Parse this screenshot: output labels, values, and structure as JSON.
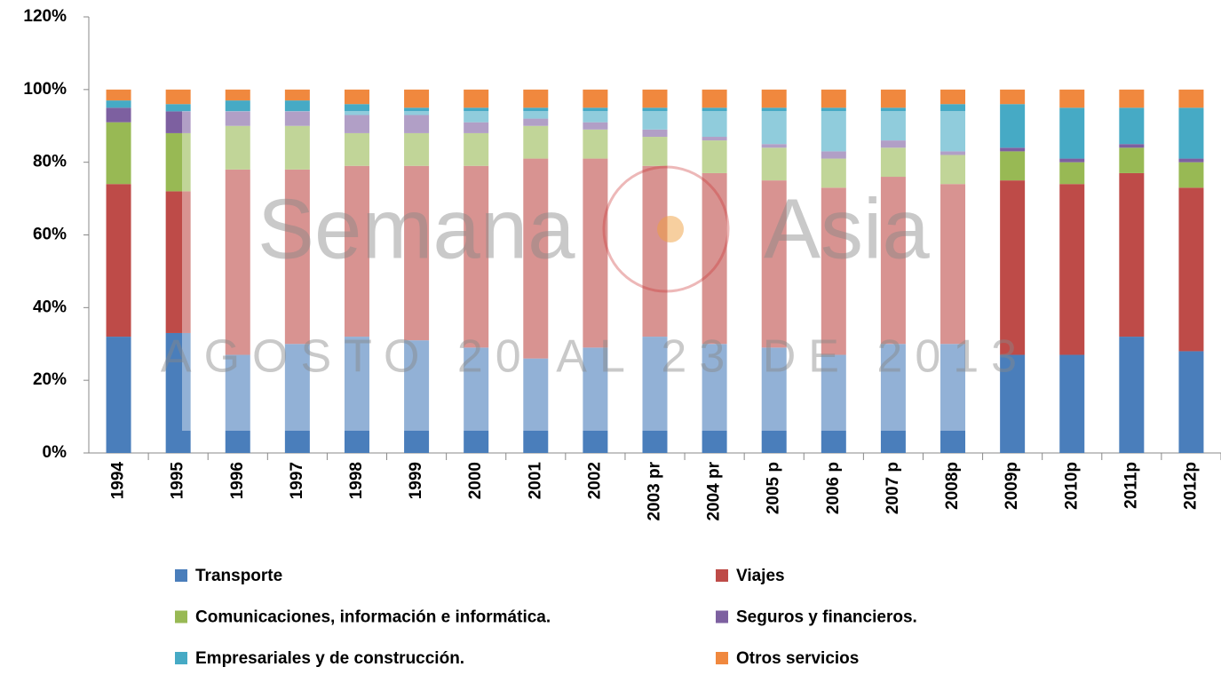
{
  "chart_data": {
    "type": "stacked_bar",
    "categories": [
      "1994",
      "1995",
      "1996",
      "1997",
      "1998",
      "1999",
      "2000",
      "2001",
      "2002",
      "2003 pr",
      "2004 pr",
      "2005 p",
      "2006 p",
      "2007 p",
      "2008p",
      "2009p",
      "2010p",
      "2011p",
      "2012p"
    ],
    "series": [
      {
        "name": "Transporte",
        "color": "#4a7ebb",
        "values": [
          32,
          33,
          27,
          30,
          32,
          31,
          29,
          26,
          29,
          32,
          30,
          29,
          27,
          30,
          30,
          27,
          27,
          32,
          28
        ]
      },
      {
        "name": "Viajes",
        "color": "#be4b48",
        "values": [
          42,
          39,
          51,
          48,
          47,
          48,
          50,
          55,
          52,
          47,
          47,
          46,
          46,
          46,
          44,
          48,
          47,
          45,
          45
        ]
      },
      {
        "name": "Comunicaciones, información e informática.",
        "color": "#98b954",
        "values": [
          17,
          16,
          12,
          12,
          9,
          9,
          9,
          9,
          8,
          8,
          9,
          9,
          8,
          8,
          8,
          8,
          6,
          7,
          7
        ]
      },
      {
        "name": "Seguros y financieros.",
        "color": "#7d60a0",
        "values": [
          4,
          6,
          4,
          4,
          5,
          5,
          3,
          2,
          2,
          2,
          1,
          1,
          2,
          2,
          1,
          1,
          1,
          1,
          1
        ]
      },
      {
        "name": "Empresariales y de construcción.",
        "color": "#46aac5",
        "values": [
          2,
          2,
          3,
          3,
          3,
          2,
          4,
          3,
          4,
          6,
          8,
          10,
          12,
          9,
          13,
          12,
          14,
          10,
          14
        ]
      },
      {
        "name": "Otros servicios",
        "color": "#f0883e",
        "values": [
          3,
          4,
          3,
          3,
          4,
          5,
          5,
          5,
          5,
          5,
          5,
          5,
          5,
          5,
          4,
          4,
          5,
          5,
          5
        ]
      }
    ],
    "ylim": [
      0,
      120
    ],
    "yticks": [
      {
        "value": 0,
        "label": "0%"
      },
      {
        "value": 20,
        "label": "20%"
      },
      {
        "value": 40,
        "label": "40%"
      },
      {
        "value": 60,
        "label": "60%"
      },
      {
        "value": 80,
        "label": "80%"
      },
      {
        "value": 100,
        "label": "100%"
      },
      {
        "value": 120,
        "label": "120%"
      }
    ],
    "watermark": [
      "Semana",
      "Asia",
      "AGOSTO 20 AL 23 DE 2013"
    ]
  }
}
